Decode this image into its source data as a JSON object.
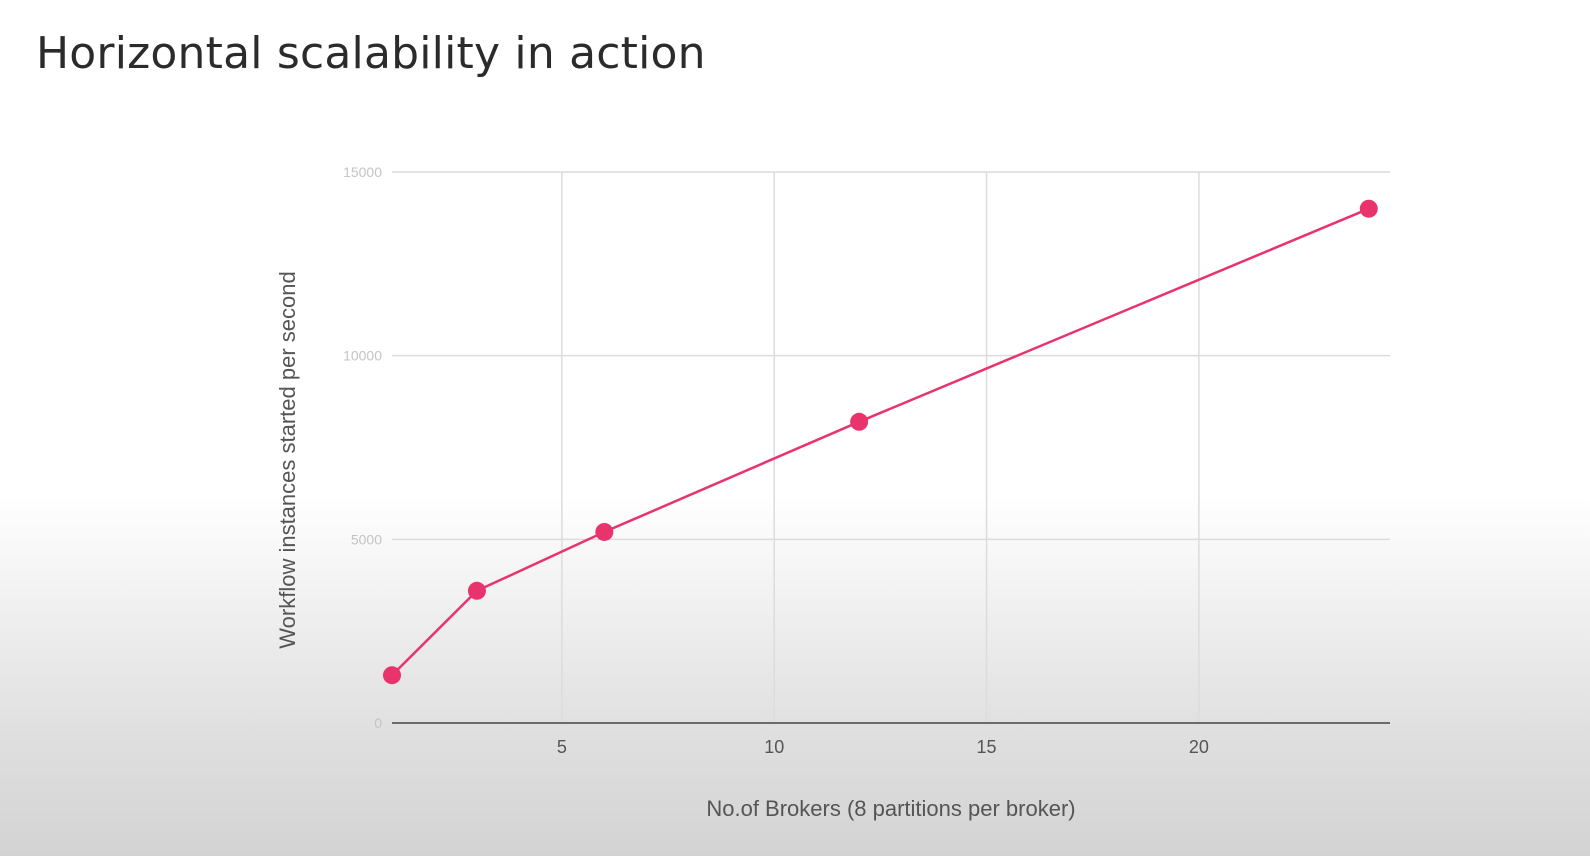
{
  "slide": {
    "title": "Horizontal scalability in action"
  },
  "chart_data": {
    "type": "line",
    "xlabel": "No.of Brokers  (8 partitions per broker)",
    "ylabel": "Workflow instances started per second",
    "xlim": [
      1,
      24.5
    ],
    "ylim": [
      0,
      15000
    ],
    "xticks": [
      5,
      10,
      15,
      20
    ],
    "yticks": [
      0,
      5000,
      10000,
      15000
    ],
    "grid": true,
    "legend": "none",
    "series": [
      {
        "color": "#e8336d",
        "x": [
          1,
          3,
          6,
          12,
          24
        ],
        "y": [
          1300,
          3600,
          5200,
          8200,
          14000
        ]
      }
    ]
  }
}
